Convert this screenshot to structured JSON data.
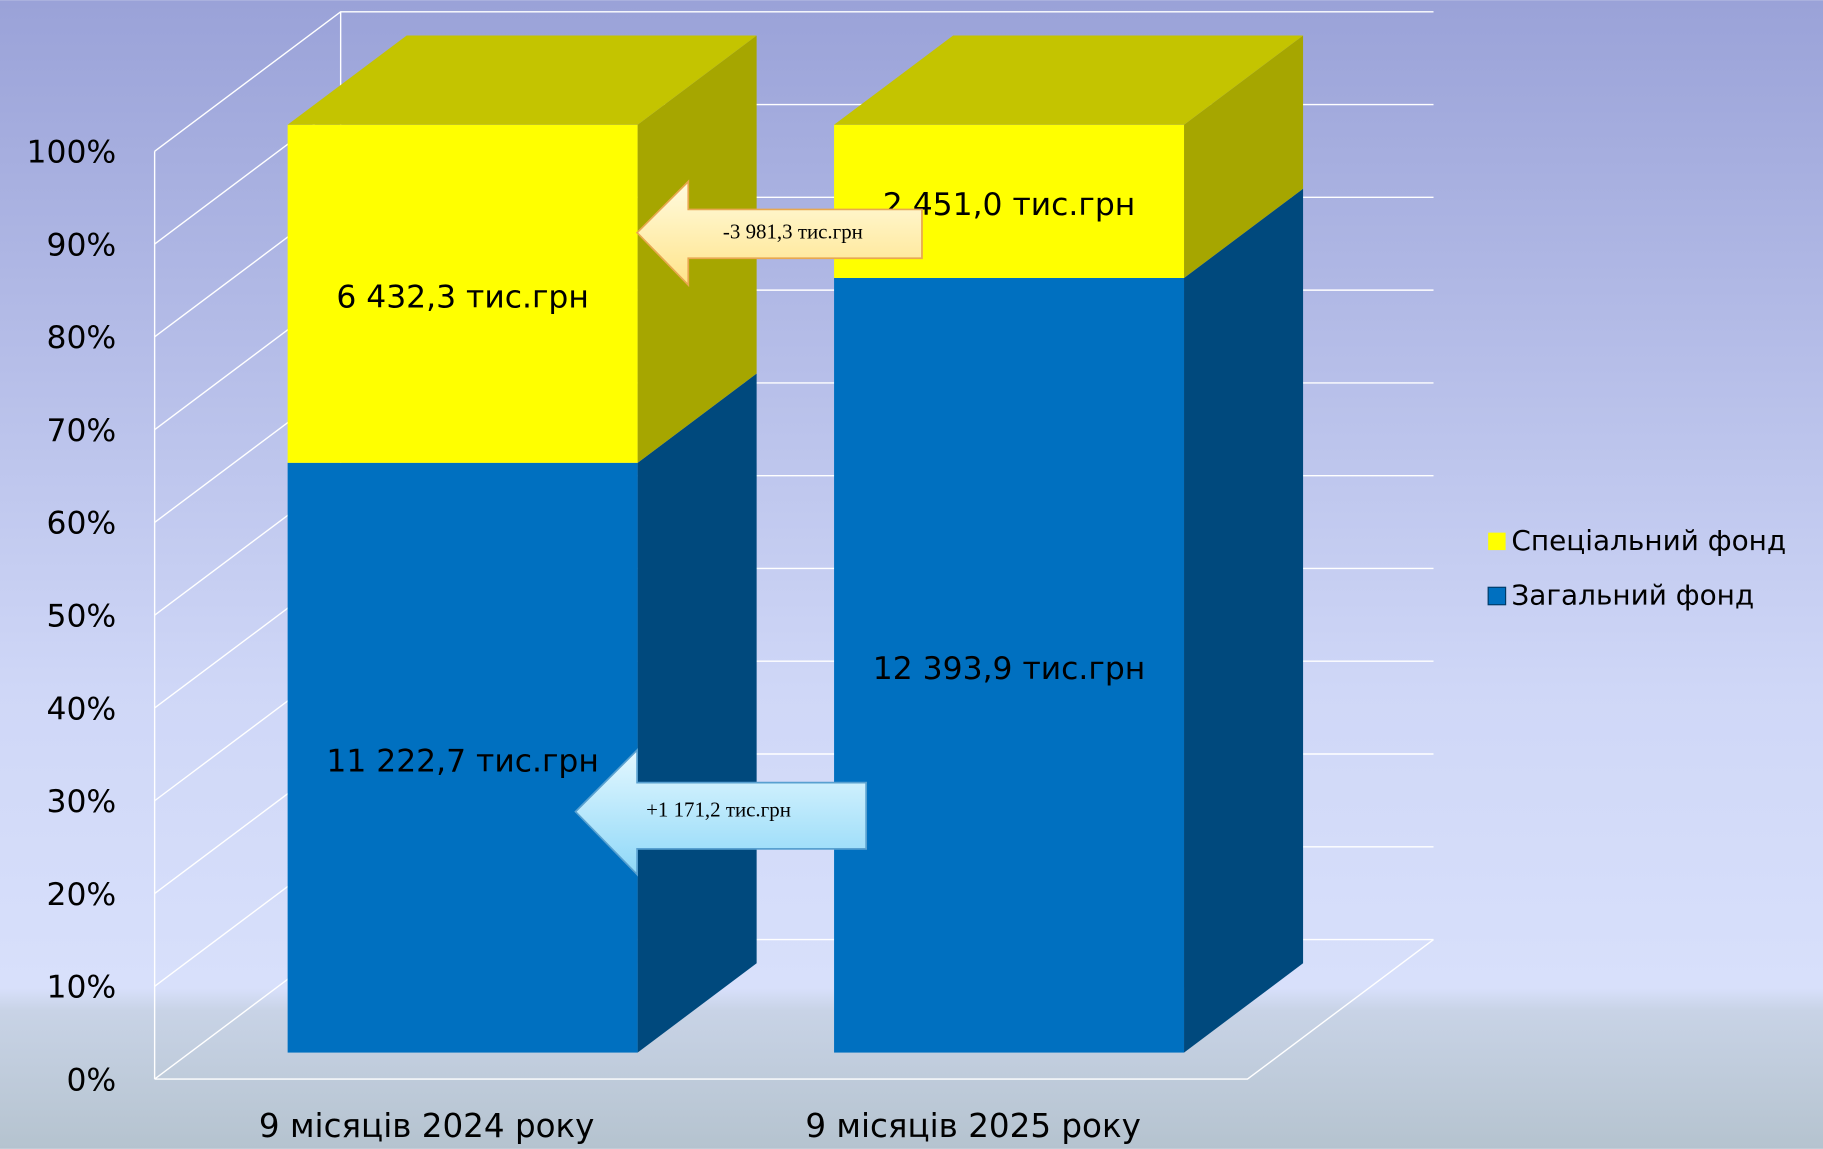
{
  "chart_data": {
    "type": "bar3d_stacked100",
    "categories": [
      "9 місяців 2024 року",
      "9 місяців 2025 року"
    ],
    "series": [
      {
        "name": "Загальний фонд",
        "color": "#0070c0",
        "values": [
          11222.7,
          12393.9
        ],
        "value_labels": [
          "11 222,7 тис.грн",
          "12 393,9 тис.грн"
        ]
      },
      {
        "name": "Спеціальний фонд",
        "color": "#ffff00",
        "values": [
          6432.3,
          2451.0
        ],
        "value_labels": [
          "6 432,3 тис.грн",
          "2 451,0 тис.грн"
        ]
      }
    ],
    "ylim": [
      0,
      100
    ],
    "yticks": [
      {
        "value": 0,
        "label": "0%"
      },
      {
        "value": 10,
        "label": "10%"
      },
      {
        "value": 20,
        "label": "20%"
      },
      {
        "value": 30,
        "label": "30%"
      },
      {
        "value": 40,
        "label": "40%"
      },
      {
        "value": 50,
        "label": "50%"
      },
      {
        "value": 60,
        "label": "60%"
      },
      {
        "value": 70,
        "label": "70%"
      },
      {
        "value": 80,
        "label": "80%"
      },
      {
        "value": 90,
        "label": "90%"
      },
      {
        "value": 100,
        "label": "100%"
      }
    ],
    "grid": true,
    "legend": "right",
    "annotations": [
      "-3 981,3 тис.грн",
      "+1 171,2 тис.грн"
    ]
  }
}
